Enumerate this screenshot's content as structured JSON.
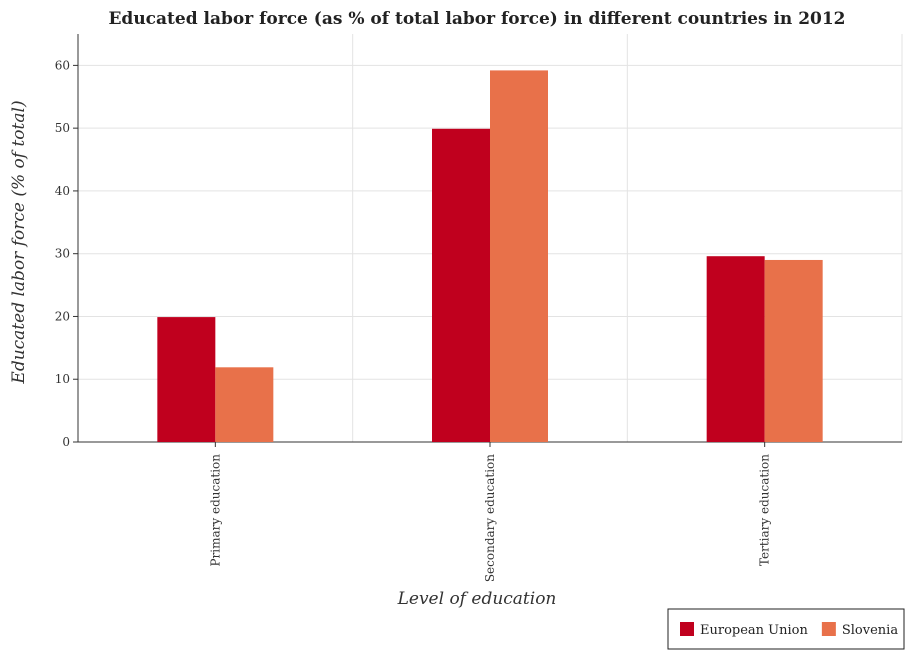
{
  "chart_data": {
    "type": "bar",
    "title": "Educated labor force (as % of total labor force) in different countries in 2012",
    "xlabel": "Level of education",
    "ylabel": "Educated labor force (% of total)",
    "categories": [
      "Primary education",
      "Secondary education",
      "Tertiary education"
    ],
    "series": [
      {
        "name": "European Union",
        "color": "#c0001e",
        "values": [
          19.9,
          49.9,
          29.6
        ]
      },
      {
        "name": "Slovenia",
        "color": "#e8714a",
        "values": [
          11.9,
          59.2,
          29.0
        ]
      }
    ],
    "ylim": [
      0,
      65
    ],
    "yticks": [
      0,
      10,
      20,
      30,
      40,
      50,
      60
    ],
    "grid": true,
    "legend_position": "bottom-right"
  }
}
